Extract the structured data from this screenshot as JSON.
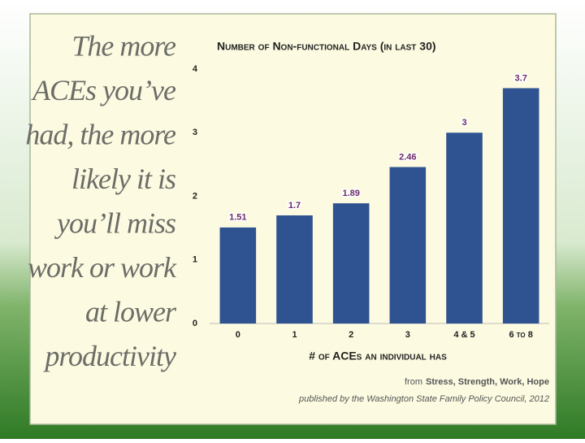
{
  "slide_text": [
    "The more",
    "ACEs you’ve",
    "had, the more",
    "likely it is",
    "you’ll miss",
    "work or work",
    "at lower",
    "productivity"
  ],
  "chart_data": {
    "type": "bar",
    "title": "Number of Non-functional Days (in last 30)",
    "x_label": "# of ACEs an individual has",
    "categories": [
      "0",
      "1",
      "2",
      "3",
      "4 & 5",
      "6 to 8"
    ],
    "values": [
      1.51,
      1.7,
      1.89,
      2.46,
      3,
      3.7
    ],
    "color": "#2f5390",
    "ylim": [
      0,
      4
    ],
    "yticks": [
      0,
      1,
      2,
      3,
      4
    ],
    "grid": false
  },
  "source": {
    "prefix": "from",
    "title": "Stress, Strength, Work, Hope",
    "line2": "published by the Washington State Family Policy Council, 2012"
  }
}
